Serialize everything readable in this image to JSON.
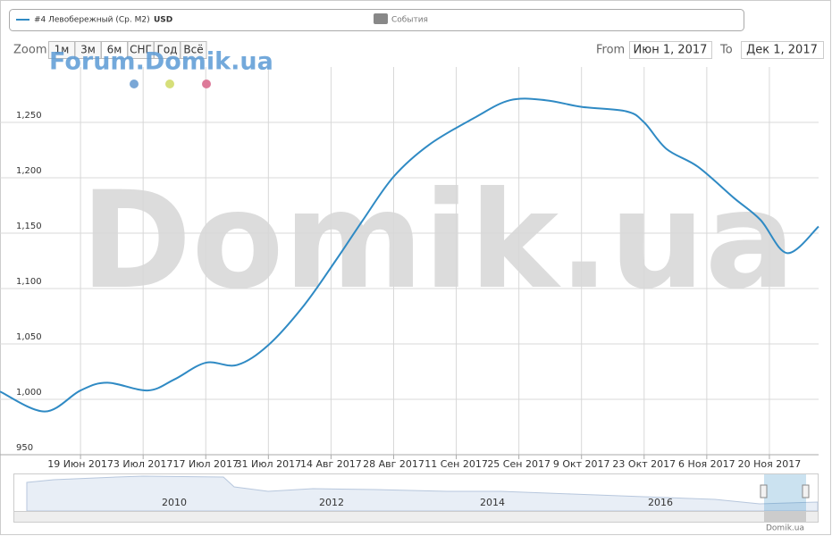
{
  "chart_data": {
    "type": "line",
    "series": [
      {
        "name": "#4 Левобережный (Ср. М2)",
        "unit": "USD",
        "color": "#2f8ac4",
        "x": [
          "2017-06-01",
          "2017-06-11",
          "2017-06-19",
          "2017-06-25",
          "2017-07-04",
          "2017-07-10",
          "2017-07-17",
          "2017-07-24",
          "2017-07-31",
          "2017-08-08",
          "2017-08-15",
          "2017-08-21",
          "2017-08-28",
          "2017-09-05",
          "2017-09-15",
          "2017-09-23",
          "2017-10-01",
          "2017-10-09",
          "2017-10-19",
          "2017-10-23",
          "2017-10-28",
          "2017-11-04",
          "2017-11-12",
          "2017-11-18",
          "2017-11-24",
          "2017-12-01"
        ],
        "values": [
          1007,
          989,
          1008,
          1015,
          1008,
          1018,
          1033,
          1031,
          1049,
          1085,
          1125,
          1161,
          1201,
          1230,
          1254,
          1270,
          1270,
          1264,
          1260,
          1250,
          1226,
          1210,
          1182,
          1162,
          1132,
          1156
        ]
      }
    ],
    "events_label": "События",
    "xlim": [
      "2017-06-01",
      "2017-12-01"
    ],
    "xticks": [
      {
        "value": "2017-06-19",
        "label": "19 Июн 2017"
      },
      {
        "value": "2017-07-03",
        "label": "3 Июл 2017"
      },
      {
        "value": "2017-07-17",
        "label": "17 Июл 2017"
      },
      {
        "value": "2017-07-31",
        "label": "31 Июл 2017"
      },
      {
        "value": "2017-08-14",
        "label": "14 Авг 2017"
      },
      {
        "value": "2017-08-28",
        "label": "28 Авг 2017"
      },
      {
        "value": "2017-09-11",
        "label": "11 Сен 2017"
      },
      {
        "value": "2017-09-25",
        "label": "25 Сен 2017"
      },
      {
        "value": "2017-10-09",
        "label": "9 Окт 2017"
      },
      {
        "value": "2017-10-23",
        "label": "23 Окт 2017"
      },
      {
        "value": "2017-11-06",
        "label": "6 Ноя 2017"
      },
      {
        "value": "2017-11-20",
        "label": "20 Ноя 2017"
      }
    ],
    "ylim": [
      950,
      1300
    ],
    "yticks": [
      950,
      {
        "value": 1000,
        "label": "1,000"
      },
      {
        "value": 1050,
        "label": "1,050"
      },
      {
        "value": 1100,
        "label": "1,100"
      },
      {
        "value": 1150,
        "label": "1,150"
      },
      {
        "value": 1200,
        "label": "1,200"
      },
      {
        "value": 1250,
        "label": "1,250"
      }
    ],
    "grid": true
  },
  "ui": {
    "zoom_label": "Zoom",
    "buttons": [
      "1м",
      "3м",
      "6м",
      "СНГ",
      "Год",
      "Всё"
    ],
    "from_label": "From",
    "from": "Июн 1, 2017",
    "to_label": "To",
    "to": "Дек 1, 2017",
    "watermark": "Forum.Domik.ua",
    "big_watermark": "Domik.ua",
    "credit": "Domik.ua",
    "navigator_years": [
      "2010",
      "2012",
      "2014",
      "2016"
    ]
  }
}
